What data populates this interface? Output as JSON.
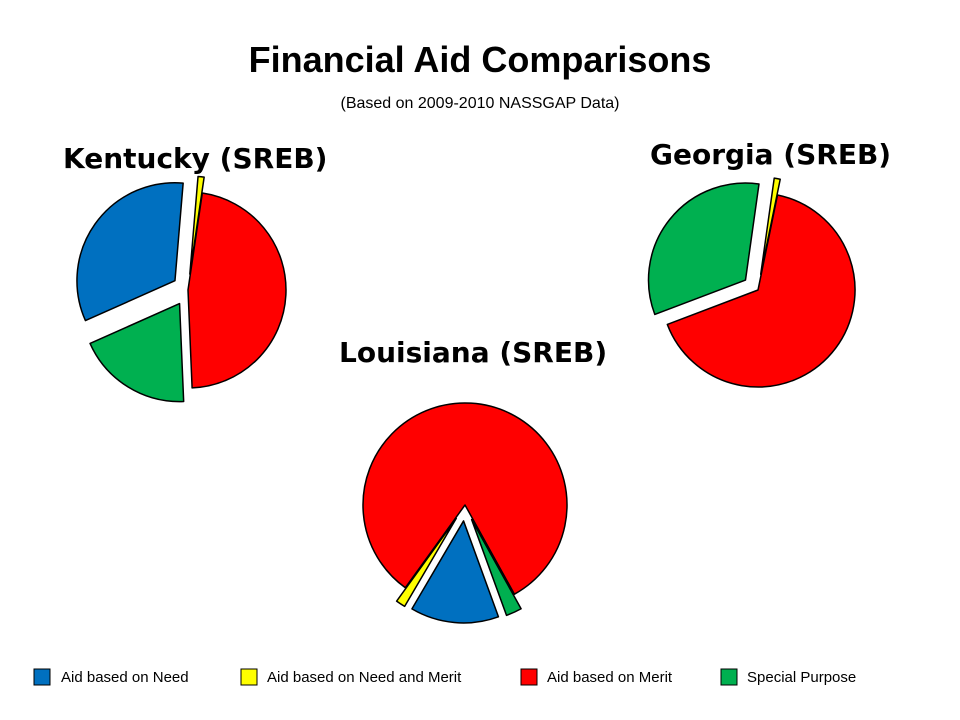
{
  "title": "Financial Aid Comparisons",
  "subtitle": "(Based on 2009-2010 NASSGAP Data)",
  "legend": [
    {
      "label": "Aid based on Need",
      "color": "#0070c0"
    },
    {
      "label": "Aid based on Need and Merit",
      "color": "#ffff00"
    },
    {
      "label": "Aid based on Merit",
      "color": "#ff0000"
    },
    {
      "label": "Special Purpose",
      "color": "#00b050"
    }
  ],
  "chart_data": [
    {
      "type": "pie",
      "title": "Kentucky (SREB)",
      "categories": [
        "Aid based on Need",
        "Aid based on Need and Merit",
        "Aid based on Merit",
        "Special Purpose"
      ],
      "values": [
        33,
        1,
        47,
        19
      ],
      "colors": [
        "#0070c0",
        "#ffff00",
        "#ff0000",
        "#00b050"
      ],
      "exploded": [
        true,
        true,
        false,
        true
      ]
    },
    {
      "type": "pie",
      "title": "Georgia (SREB)",
      "categories": [
        "Aid based on Need",
        "Aid based on Need and Merit",
        "Aid based on Merit",
        "Special Purpose"
      ],
      "values": [
        0,
        1,
        66,
        33
      ],
      "colors": [
        "#0070c0",
        "#ffff00",
        "#ff0000",
        "#00b050"
      ],
      "exploded": [
        true,
        true,
        false,
        true
      ]
    },
    {
      "type": "pie",
      "title": "Louisiana (SREB)",
      "categories": [
        "Aid based on Need",
        "Aid based on Need and Merit",
        "Aid based on Merit",
        "Special Purpose"
      ],
      "values": [
        14,
        1.5,
        82,
        2.5
      ],
      "colors": [
        "#0070c0",
        "#ffff00",
        "#ff0000",
        "#00b050"
      ],
      "exploded": [
        true,
        true,
        false,
        true
      ]
    }
  ]
}
